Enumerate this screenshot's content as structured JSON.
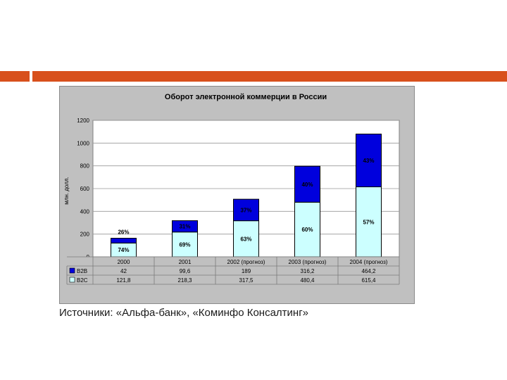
{
  "colors": {
    "accent": "#d8501c",
    "b2b": "#0000dd",
    "b2c": "#ccffff",
    "chart_bg": "#c0c0c0",
    "plot_bg": "#ffffff"
  },
  "chart_data": {
    "type": "bar",
    "stacked": true,
    "title": "Оборот электронной коммерции в России",
    "ylabel": "млн. долл.",
    "ylim": [
      0,
      1200
    ],
    "yticks": [
      0,
      200,
      400,
      600,
      800,
      1000,
      1200
    ],
    "grid": true,
    "categories": [
      "2000",
      "2001",
      "2002 (прогноз)",
      "2003 (прогноз)",
      "2004 (прогноз)"
    ],
    "series": [
      {
        "name": "B2B",
        "values": [
          42,
          99.6,
          189,
          316.2,
          464.2
        ],
        "value_labels": [
          "42",
          "99,6",
          "189",
          "316,2",
          "464,2"
        ],
        "percent_labels": [
          "26%",
          "31%",
          "37%",
          "40%",
          "43%"
        ],
        "color": "#0000dd"
      },
      {
        "name": "B2C",
        "values": [
          121.8,
          218.3,
          317.5,
          480.4,
          615.4
        ],
        "value_labels": [
          "121,8",
          "218,3",
          "317,5",
          "480,4",
          "615,4"
        ],
        "percent_labels": [
          "74%",
          "69%",
          "63%",
          "60%",
          "57%"
        ],
        "color": "#ccffff"
      }
    ]
  },
  "source_text": "Источники: «Альфа-банк», «Коминфо Консалтинг»"
}
